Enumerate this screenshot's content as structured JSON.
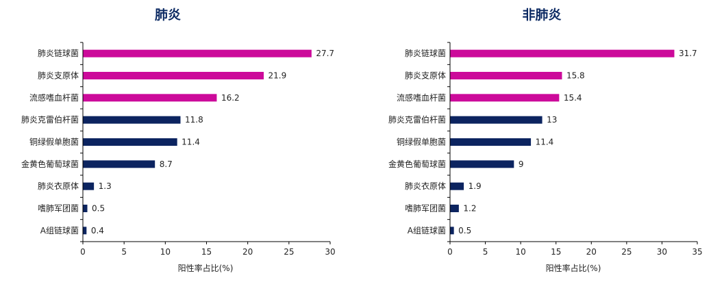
{
  "chart_data": [
    {
      "type": "bar",
      "orientation": "horizontal",
      "title": "肺炎",
      "xlabel": "阳性率占比(%)",
      "ylabel": "",
      "xlim": [
        0,
        30
      ],
      "xticks": [
        0,
        5,
        10,
        15,
        20,
        25,
        30
      ],
      "grid": false,
      "legend": "none",
      "categories": [
        "肺炎链球菌",
        "肺炎支原体",
        "流感嗜血杆菌",
        "肺炎克雷伯杆菌",
        "铜绿假单胞菌",
        "金黄色葡萄球菌",
        "肺炎衣原体",
        "嗜肺军团菌",
        "A组链球菌"
      ],
      "values": [
        27.7,
        21.9,
        16.2,
        11.8,
        11.4,
        8.7,
        1.3,
        0.5,
        0.4
      ],
      "value_labels": [
        "27.7",
        "21.9",
        "16.2",
        "11.8",
        "11.4",
        "8.7",
        "1.3",
        "0.5",
        "0.4"
      ],
      "bar_colors": [
        "#cc0a9a",
        "#cc0a9a",
        "#cc0a9a",
        "#0c2460",
        "#0c2460",
        "#0c2460",
        "#0c2460",
        "#0c2460",
        "#0c2460"
      ]
    },
    {
      "type": "bar",
      "orientation": "horizontal",
      "title": "非肺炎",
      "xlabel": "阳性率占比(%)",
      "ylabel": "",
      "xlim": [
        0,
        35
      ],
      "xticks": [
        0,
        5,
        10,
        15,
        20,
        25,
        30,
        35
      ],
      "grid": false,
      "legend": "none",
      "categories": [
        "肺炎链球菌",
        "肺炎支原体",
        "流感嗜血杆菌",
        "肺炎克雷伯杆菌",
        "铜绿假单胞菌",
        "金黄色葡萄球菌",
        "肺炎衣原体",
        "嗜肺军团菌",
        "A组链球菌"
      ],
      "values": [
        31.7,
        15.8,
        15.4,
        13,
        11.4,
        9,
        1.9,
        1.2,
        0.5
      ],
      "value_labels": [
        "31.7",
        "15.8",
        "15.4",
        "13",
        "11.4",
        "9",
        "1.9",
        "1.2",
        "0.5"
      ],
      "bar_colors": [
        "#cc0a9a",
        "#cc0a9a",
        "#cc0a9a",
        "#0c2460",
        "#0c2460",
        "#0c2460",
        "#0c2460",
        "#0c2460",
        "#0c2460"
      ]
    }
  ]
}
